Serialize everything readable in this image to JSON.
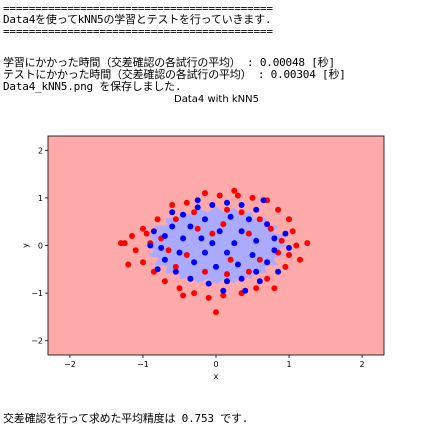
{
  "console": {
    "line1": "==========================================",
    "line2": "Data4を使ってkNN5の学習とテストを行っていきます.",
    "line3": "==========================================",
    "line4": "学習にかかった時間（交差確認の各試行の平均） : 0.00048 [秒]",
    "line5": "テストにかかった時間（交差確認の各試行の平均） : 0.00304 [秒]",
    "line6": "Data4_kNN5.png を保存しました.",
    "line7": "交差確認を行って求めた平均精度は 0.753 です."
  },
  "colors": {
    "background_region": "#ffaaaa",
    "inner_region": "#aaaaff",
    "class_red": "#ff0000",
    "class_blue": "#0000ff"
  },
  "chart_data": {
    "type": "scatter",
    "title": "Data4 with kNN5",
    "xlabel": "x",
    "ylabel": "y",
    "xlim": [
      -2.3,
      2.3
    ],
    "ylim": [
      -2.3,
      2.3
    ],
    "xticks": [
      -2,
      -1,
      0,
      1,
      2
    ],
    "yticks": [
      -2,
      -1,
      0,
      1,
      2
    ],
    "grid": false,
    "series": [
      {
        "color": "red",
        "points": [
          [
            0.25,
            1.15
          ],
          [
            0.05,
            1.05
          ],
          [
            -0.15,
            1.1
          ],
          [
            0.3,
            1.05
          ],
          [
            0.5,
            1.0
          ],
          [
            0.7,
            0.95
          ],
          [
            -0.4,
            0.9
          ],
          [
            -0.6,
            0.85
          ],
          [
            -0.8,
            0.55
          ],
          [
            0.85,
            0.75
          ],
          [
            1.0,
            0.55
          ],
          [
            1.05,
            0.3
          ],
          [
            1.1,
            0.0
          ],
          [
            1.25,
            0.05
          ],
          [
            1.0,
            -0.2
          ],
          [
            0.95,
            -0.45
          ],
          [
            0.7,
            -0.7
          ],
          [
            0.55,
            -0.9
          ],
          [
            0.35,
            -1.0
          ],
          [
            0.1,
            -1.05
          ],
          [
            -0.1,
            -1.1
          ],
          [
            -0.3,
            -1.0
          ],
          [
            -0.5,
            -0.9
          ],
          [
            -0.7,
            -0.75
          ],
          [
            -0.85,
            -0.55
          ],
          [
            -1.0,
            -0.35
          ],
          [
            -1.1,
            -0.1
          ],
          [
            -1.15,
            0.2
          ],
          [
            -1.0,
            0.35
          ],
          [
            -1.25,
            0.05
          ],
          [
            -0.9,
            0.05
          ],
          [
            -0.95,
            0.25
          ],
          [
            -0.75,
            0.15
          ],
          [
            -0.55,
            -0.45
          ],
          [
            -0.35,
            -0.7
          ],
          [
            -0.15,
            -0.55
          ],
          [
            0.15,
            -0.6
          ],
          [
            0.45,
            -0.55
          ],
          [
            0.6,
            -0.3
          ],
          [
            0.75,
            0.35
          ],
          [
            0.6,
            0.55
          ],
          [
            0.35,
            0.7
          ],
          [
            -0.3,
            0.7
          ],
          [
            -0.55,
            0.55
          ],
          [
            -0.25,
            0.35
          ],
          [
            0.1,
            0.45
          ],
          [
            0.45,
            0.25
          ],
          [
            -0.05,
            0.25
          ],
          [
            -0.4,
            -0.2
          ],
          [
            0.2,
            -0.3
          ],
          [
            0.85,
            -0.15
          ],
          [
            -0.65,
            -0.1
          ],
          [
            0.0,
            -1.4
          ],
          [
            -1.3,
            0.05
          ],
          [
            0.15,
            0.75
          ],
          [
            -0.45,
            -1.05
          ],
          [
            0.8,
            -0.9
          ],
          [
            1.15,
            -0.3
          ],
          [
            -1.2,
            -0.4
          ],
          [
            0.9,
            0.1
          ]
        ]
      },
      {
        "color": "blue",
        "points": [
          [
            -0.05,
            0.85
          ],
          [
            0.15,
            0.9
          ],
          [
            0.35,
            0.85
          ],
          [
            0.55,
            0.75
          ],
          [
            -0.25,
            0.8
          ],
          [
            -0.45,
            0.65
          ],
          [
            -0.6,
            0.4
          ],
          [
            -0.7,
            0.2
          ],
          [
            -0.75,
            -0.05
          ],
          [
            -0.7,
            -0.3
          ],
          [
            -0.55,
            -0.55
          ],
          [
            -0.35,
            -0.7
          ],
          [
            -0.1,
            -0.8
          ],
          [
            0.15,
            -0.75
          ],
          [
            0.35,
            -0.7
          ],
          [
            0.55,
            -0.55
          ],
          [
            0.7,
            -0.35
          ],
          [
            0.8,
            -0.1
          ],
          [
            0.8,
            0.15
          ],
          [
            0.7,
            0.45
          ],
          [
            0.45,
            0.55
          ],
          [
            0.2,
            0.6
          ],
          [
            -0.15,
            0.55
          ],
          [
            -0.35,
            0.4
          ],
          [
            -0.45,
            0.15
          ],
          [
            -0.5,
            -0.15
          ],
          [
            -0.3,
            -0.35
          ],
          [
            0.0,
            -0.45
          ],
          [
            0.3,
            -0.4
          ],
          [
            0.5,
            -0.2
          ],
          [
            0.55,
            0.1
          ],
          [
            0.35,
            0.3
          ],
          [
            0.05,
            0.3
          ],
          [
            -0.2,
            0.15
          ],
          [
            -0.15,
            -0.15
          ],
          [
            0.15,
            -0.15
          ],
          [
            0.25,
            0.05
          ],
          [
            -0.05,
            0.05
          ],
          [
            0.6,
            -0.75
          ],
          [
            -0.6,
            0.7
          ],
          [
            0.95,
            0.25
          ],
          [
            -0.85,
            0.3
          ],
          [
            0.1,
            -0.95
          ],
          [
            0.65,
            0.95
          ],
          [
            -0.8,
            -0.5
          ],
          [
            0.4,
            -0.95
          ],
          [
            -0.25,
            0.95
          ],
          [
            0.85,
            -0.55
          ],
          [
            -0.9,
            0.0
          ],
          [
            1.0,
            -0.05
          ]
        ]
      }
    ]
  }
}
